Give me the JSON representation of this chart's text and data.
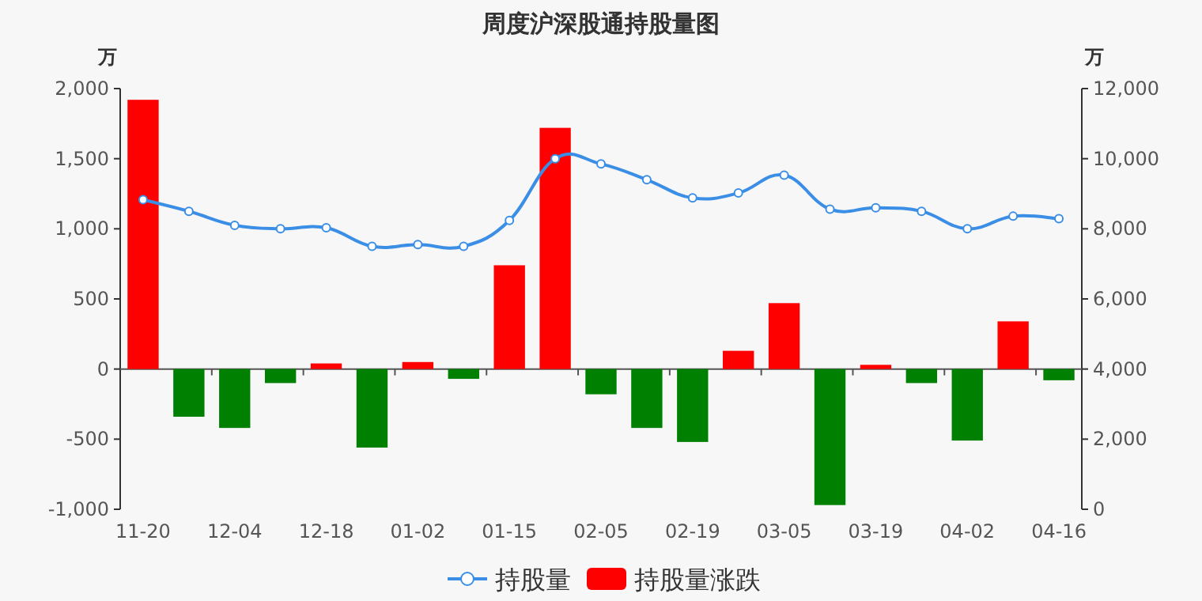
{
  "chart_data": {
    "type": "bar",
    "title": "周度沪深股通持股量图",
    "ylabel": "万",
    "y2label": "万",
    "categories": [
      "11-20",
      null,
      "12-04",
      null,
      "12-18",
      null,
      "01-02",
      null,
      "01-15",
      null,
      "02-05",
      null,
      "02-19",
      null,
      "03-05",
      null,
      "03-19",
      null,
      "04-02",
      null,
      "04-16"
    ],
    "ylim": [
      -1000,
      2000
    ],
    "yticks": [
      {
        "value": -1000,
        "label": "-1,000"
      },
      -500,
      0,
      500,
      {
        "value": 1000,
        "label": "1,000"
      },
      {
        "value": 1500,
        "label": "1,500"
      },
      {
        "value": 2000,
        "label": "2,000"
      }
    ],
    "y2lim": [
      0,
      12000
    ],
    "y2ticks": [
      0,
      {
        "value": 2000,
        "label": "2,000"
      },
      {
        "value": 4000,
        "label": "4,000"
      },
      {
        "value": 6000,
        "label": "6,000"
      },
      {
        "value": 8000,
        "label": "8,000"
      },
      {
        "value": 10000,
        "label": "10,000"
      },
      {
        "value": 12000,
        "label": "12,000"
      }
    ],
    "series": [
      {
        "name": "持股量",
        "type": "line",
        "axis": "y2",
        "color": "#3a8ee6",
        "marker": "circle",
        "values": [
          8830,
          8500,
          8100,
          8000,
          8030,
          7500,
          7550,
          7500,
          8240,
          10000,
          9850,
          9400,
          8880,
          9020,
          9530,
          8560,
          8600,
          8500,
          8000,
          8360,
          8290
        ]
      },
      {
        "name": "持股量涨跌",
        "color": "#ff0000",
        "colors": [
          "#ff0000",
          "#008000",
          "#008000",
          "#008000",
          "#ff0000",
          "#008000",
          "#ff0000",
          "#008000",
          "#ff0000",
          "#ff0000",
          "#008000",
          "#008000",
          "#008000",
          "#ff0000",
          "#ff0000",
          "#008000",
          "#ff0000",
          "#008000",
          "#008000",
          "#ff0000",
          "#008000"
        ],
        "values": [
          1920,
          -340,
          -420,
          -100,
          40,
          -560,
          50,
          -70,
          740,
          1720,
          -180,
          -420,
          -520,
          130,
          470,
          -970,
          30,
          -100,
          -510,
          340,
          -80
        ]
      }
    ],
    "legend": "bottom"
  }
}
